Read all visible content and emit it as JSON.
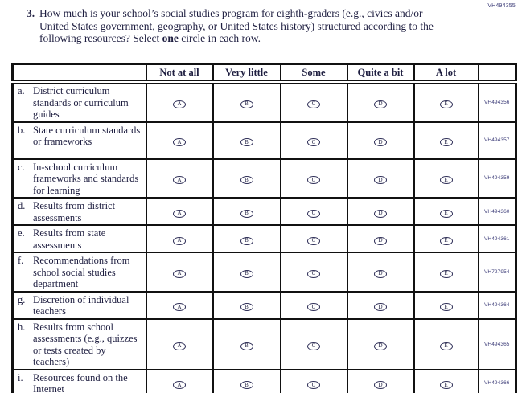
{
  "page": {
    "top_code": "VH494355",
    "question": {
      "number": "3.",
      "text_part1": "How much is your school’s social studies program for eighth-graders (e.g., civics and/or United States government, geography, or United States history) structured according to the following resources? Select ",
      "bold_word": "one",
      "text_part2": " circle in each row."
    }
  },
  "table": {
    "columns": [
      "Not at all",
      "Very little",
      "Some",
      "Quite a bit",
      "A lot"
    ],
    "option_letters": [
      "A",
      "B",
      "C",
      "D",
      "E"
    ],
    "rows": [
      {
        "letter": "a.",
        "label": "District curriculum standards or curriculum guides",
        "code": "VH494356"
      },
      {
        "letter": "b.",
        "label": "State curriculum standards or frameworks",
        "code": "VH494357"
      },
      {
        "letter": "c.",
        "label": "In-school curriculum frameworks and standards for learning",
        "code": "VH494359"
      },
      {
        "letter": "d.",
        "label": "Results from district assessments",
        "code": "VH494360"
      },
      {
        "letter": "e.",
        "label": "Results from state assessments",
        "code": "VH494361"
      },
      {
        "letter": "f.",
        "label": "Recommendations from school social studies department",
        "code": "VH727954"
      },
      {
        "letter": "g.",
        "label": "Discretion of individual teachers",
        "code": "VH494364"
      },
      {
        "letter": "h.",
        "label": "Results from school assessments (e.g., quizzes or tests created by teachers)",
        "code": "VH494365"
      },
      {
        "letter": "i.",
        "label": "Resources found on the Internet",
        "code": "VH494366"
      }
    ]
  },
  "colors": {
    "text": "#1e1e40",
    "border": "#111111",
    "code_text": "#3c3c78",
    "bubble_border": "#2c2c55",
    "background": "#ffffff"
  }
}
